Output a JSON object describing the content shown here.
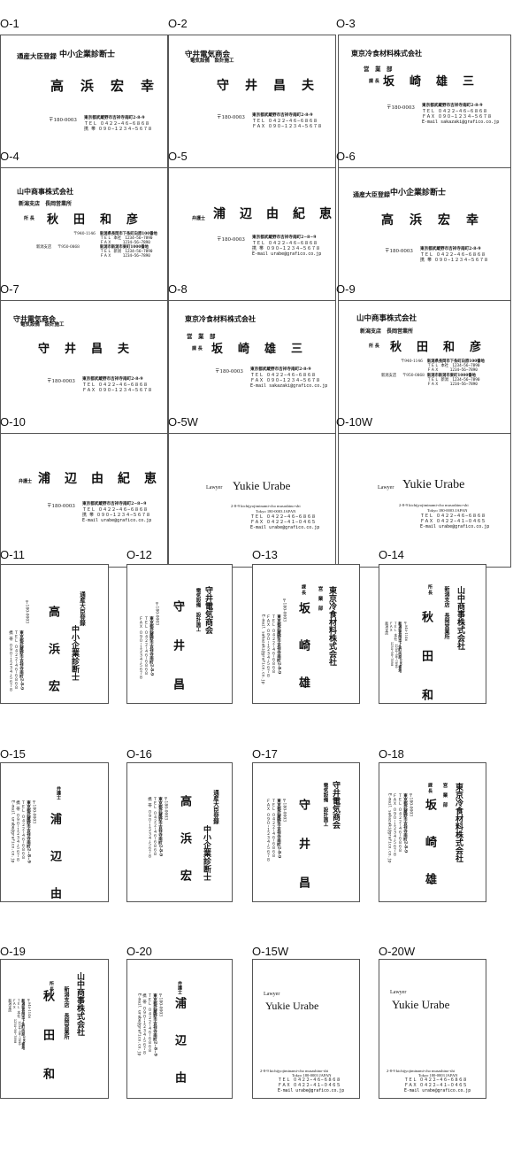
{
  "labels": [
    "O-1",
    "O-2",
    "O-3",
    "O-4",
    "O-5",
    "O-6",
    "O-7",
    "O-8",
    "O-9",
    "O-10",
    "O-5W",
    "O-10W",
    "O-11",
    "O-12",
    "O-13",
    "O-14",
    "O-15",
    "O-16",
    "O-17",
    "O-18",
    "O-19",
    "O-20",
    "O-15W",
    "O-20W"
  ],
  "consultant": {
    "reg": "通産大臣登録",
    "title": "中小企業診断士",
    "name": "高　浜　宏　幸",
    "zip": "〒180-0003",
    "addr": "東京都武蔵野市吉祥寺南町2-8-9",
    "tel": "ＴＥＬ ０４２２−４６−６８６８",
    "mob": "携 帯 ０９０−１２３４−５６７８"
  },
  "moriya": {
    "company": "守井電気商会",
    "sub": "電気設備　設計施工",
    "name": "守　井　昌　夫",
    "zip": "〒180-0003",
    "addr": "東京都武蔵野市吉祥寺南町2-8-9",
    "tel": "ＴＥＬ ０４２２−４６−６８６８",
    "fax": "ＦＡＸ ０９０−１２３４−５６７８"
  },
  "tokyo": {
    "company": "東京冷食材料株式会社",
    "dept": "営　業　部",
    "role": "課 長",
    "name": "坂　崎　雄　三",
    "zip": "〒180-0003",
    "addr": "東京都武蔵野市吉祥寺南町2-8-9",
    "tel": "ＴＥＬ ０４２２−４６−６８６８",
    "fax": "ＦＡＸ ０９０−１２３４−５６７８",
    "email": "E-mail  sakazaki@grafico.co.jp"
  },
  "yamanaka": {
    "company": "山中商事株式会社",
    "branch": "新潟支店　長岡営業所",
    "role": "所 長",
    "name": "秋　田　和　彦",
    "zip1": "〒940-1146",
    "addr1": "新潟県長岡市下条町向原100番地",
    "tel1": "ＴＥＬ 本社　1234−56−7890",
    "fax1": "ＦＡＸ　　　1234−56−7890",
    "branch2": "新潟支店",
    "zip2": "〒950-0868",
    "addr2": "新潟市新潟市東町1000番地",
    "tel2": "ＴＥＬ 新潟　1234−56−7890",
    "fax2": "ＦＡＸ　　　1234−56−7890"
  },
  "urabe": {
    "role": "弁護士",
    "name": "浦　辺　由　紀　恵",
    "zip": "〒180-0003",
    "addr": "東京都武蔵野市吉祥寺南町2−8−9",
    "tel": "ＴＥＬ ０４２２−４６−６８６８",
    "fax": "携 帯 ０９０−１２３４−５６７８",
    "email": "E-mail  urabe@grafico.co.jp"
  },
  "urabe_en": {
    "role": "Lawyer",
    "name": "Yukie Urabe",
    "addr": "2-8-9 kichijyojiminami-cho musashino-shi",
    "city": "Tokyo 180-0003 JAPAN",
    "tel": "ＴＥＬ ０４２２−４６−６８６８",
    "fax": "ＦＡＸ ０４２２−４１−０４６５",
    "email": "E-mail  urabe@grafico.co.jp"
  }
}
